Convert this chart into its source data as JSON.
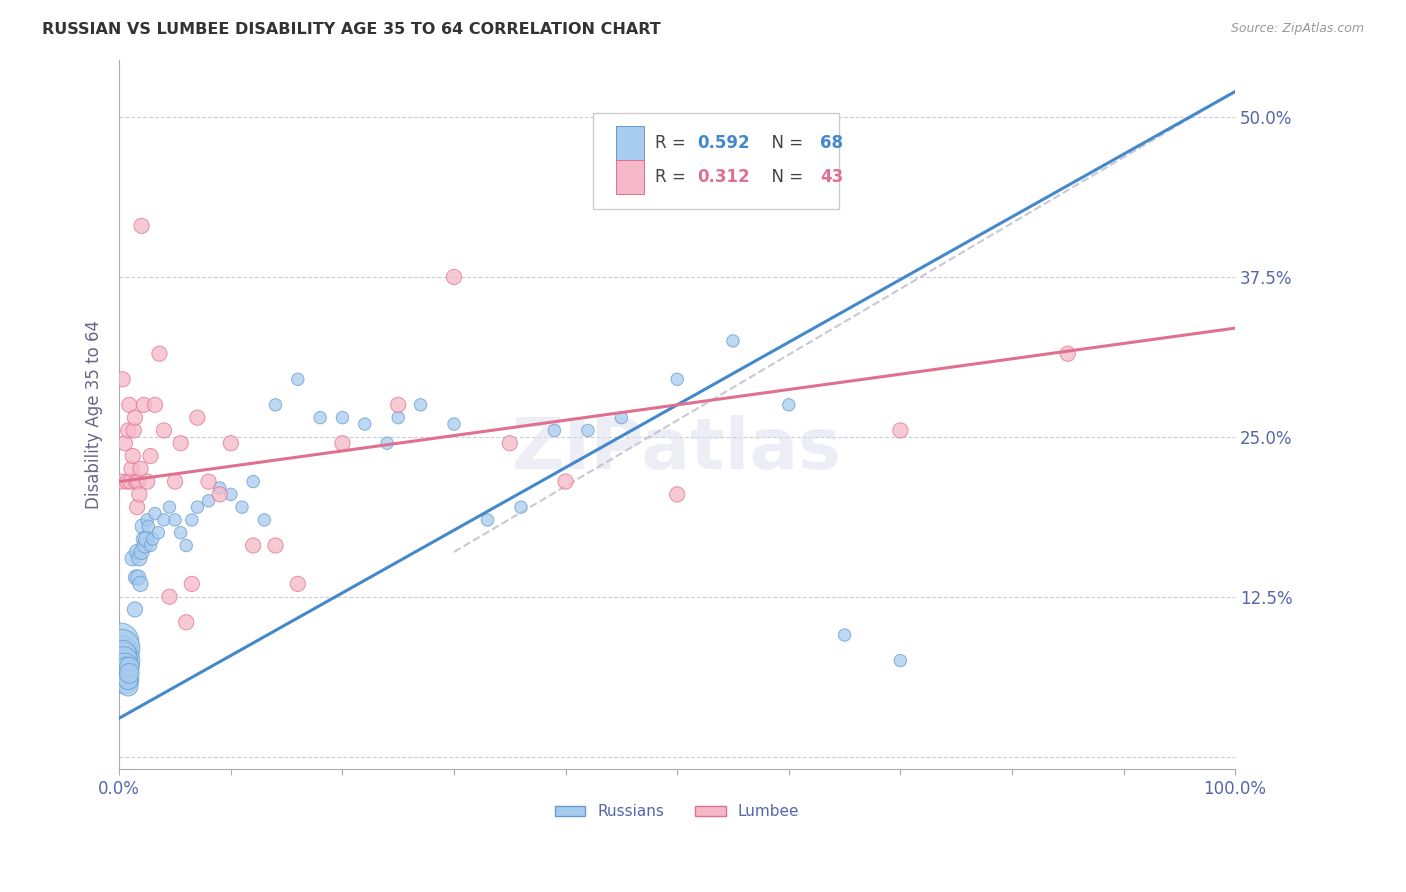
{
  "title": "RUSSIAN VS LUMBEE DISABILITY AGE 35 TO 64 CORRELATION CHART",
  "source": "Source: ZipAtlas.com",
  "ylabel": "Disability Age 35 to 64",
  "xlim": [
    0,
    1.0
  ],
  "ylim": [
    -0.01,
    0.545
  ],
  "yticks": [
    0.0,
    0.125,
    0.25,
    0.375,
    0.5
  ],
  "ytick_labels": [
    "",
    "12.5%",
    "25.0%",
    "37.5%",
    "50.0%"
  ],
  "xtick_left_label": "0.0%",
  "xtick_right_label": "100.0%",
  "russian_color": "#A8CCF0",
  "lumbee_color": "#F5B8C8",
  "russian_edge_color": "#6699CC",
  "lumbee_edge_color": "#E07090",
  "blue_line_color": "#4488CC",
  "pink_line_color": "#E07090",
  "dashed_line_color": "#BBBBCC",
  "r_russian": 0.592,
  "n_russian": 68,
  "r_lumbee": 0.312,
  "n_lumbee": 43,
  "legend_label_russian": "Russians",
  "legend_label_lumbee": "Lumbee",
  "background_color": "#FFFFFF",
  "grid_color": "#CCCCDD",
  "title_color": "#333333",
  "axis_label_color": "#666688",
  "tick_color": "#5566AA",
  "blue_line_x": [
    0.0,
    1.0
  ],
  "blue_line_y": [
    0.03,
    0.52
  ],
  "pink_line_x": [
    0.0,
    1.0
  ],
  "pink_line_y": [
    0.215,
    0.335
  ],
  "dash_line_x": [
    0.3,
    1.0
  ],
  "dash_line_y": [
    0.16,
    0.52
  ],
  "russian_points": [
    [
      0.001,
      0.09
    ],
    [
      0.001,
      0.08
    ],
    [
      0.002,
      0.085
    ],
    [
      0.002,
      0.075
    ],
    [
      0.003,
      0.07
    ],
    [
      0.003,
      0.08
    ],
    [
      0.004,
      0.065
    ],
    [
      0.004,
      0.075
    ],
    [
      0.005,
      0.06
    ],
    [
      0.005,
      0.07
    ],
    [
      0.006,
      0.065
    ],
    [
      0.006,
      0.07
    ],
    [
      0.007,
      0.06
    ],
    [
      0.007,
      0.065
    ],
    [
      0.008,
      0.055
    ],
    [
      0.008,
      0.06
    ],
    [
      0.009,
      0.07
    ],
    [
      0.009,
      0.065
    ],
    [
      0.012,
      0.155
    ],
    [
      0.014,
      0.115
    ],
    [
      0.015,
      0.14
    ],
    [
      0.016,
      0.16
    ],
    [
      0.017,
      0.14
    ],
    [
      0.018,
      0.155
    ],
    [
      0.019,
      0.135
    ],
    [
      0.02,
      0.16
    ],
    [
      0.021,
      0.18
    ],
    [
      0.022,
      0.17
    ],
    [
      0.023,
      0.165
    ],
    [
      0.024,
      0.17
    ],
    [
      0.025,
      0.185
    ],
    [
      0.026,
      0.18
    ],
    [
      0.028,
      0.165
    ],
    [
      0.03,
      0.17
    ],
    [
      0.032,
      0.19
    ],
    [
      0.035,
      0.175
    ],
    [
      0.04,
      0.185
    ],
    [
      0.045,
      0.195
    ],
    [
      0.05,
      0.185
    ],
    [
      0.055,
      0.175
    ],
    [
      0.06,
      0.165
    ],
    [
      0.065,
      0.185
    ],
    [
      0.07,
      0.195
    ],
    [
      0.08,
      0.2
    ],
    [
      0.09,
      0.21
    ],
    [
      0.1,
      0.205
    ],
    [
      0.11,
      0.195
    ],
    [
      0.12,
      0.215
    ],
    [
      0.13,
      0.185
    ],
    [
      0.14,
      0.275
    ],
    [
      0.16,
      0.295
    ],
    [
      0.18,
      0.265
    ],
    [
      0.2,
      0.265
    ],
    [
      0.22,
      0.26
    ],
    [
      0.24,
      0.245
    ],
    [
      0.25,
      0.265
    ],
    [
      0.27,
      0.275
    ],
    [
      0.3,
      0.26
    ],
    [
      0.33,
      0.185
    ],
    [
      0.36,
      0.195
    ],
    [
      0.39,
      0.255
    ],
    [
      0.42,
      0.255
    ],
    [
      0.45,
      0.265
    ],
    [
      0.5,
      0.295
    ],
    [
      0.55,
      0.325
    ],
    [
      0.6,
      0.275
    ],
    [
      0.65,
      0.095
    ],
    [
      0.7,
      0.075
    ]
  ],
  "lumbee_points": [
    [
      0.002,
      0.215
    ],
    [
      0.003,
      0.295
    ],
    [
      0.005,
      0.245
    ],
    [
      0.007,
      0.215
    ],
    [
      0.008,
      0.255
    ],
    [
      0.009,
      0.275
    ],
    [
      0.01,
      0.215
    ],
    [
      0.011,
      0.225
    ],
    [
      0.012,
      0.235
    ],
    [
      0.013,
      0.255
    ],
    [
      0.014,
      0.265
    ],
    [
      0.015,
      0.215
    ],
    [
      0.016,
      0.195
    ],
    [
      0.017,
      0.215
    ],
    [
      0.018,
      0.205
    ],
    [
      0.019,
      0.225
    ],
    [
      0.02,
      0.415
    ],
    [
      0.022,
      0.275
    ],
    [
      0.025,
      0.215
    ],
    [
      0.028,
      0.235
    ],
    [
      0.032,
      0.275
    ],
    [
      0.036,
      0.315
    ],
    [
      0.04,
      0.255
    ],
    [
      0.045,
      0.125
    ],
    [
      0.05,
      0.215
    ],
    [
      0.055,
      0.245
    ],
    [
      0.06,
      0.105
    ],
    [
      0.065,
      0.135
    ],
    [
      0.07,
      0.265
    ],
    [
      0.08,
      0.215
    ],
    [
      0.09,
      0.205
    ],
    [
      0.1,
      0.245
    ],
    [
      0.12,
      0.165
    ],
    [
      0.14,
      0.165
    ],
    [
      0.16,
      0.135
    ],
    [
      0.2,
      0.245
    ],
    [
      0.25,
      0.275
    ],
    [
      0.3,
      0.375
    ],
    [
      0.35,
      0.245
    ],
    [
      0.4,
      0.215
    ],
    [
      0.5,
      0.205
    ],
    [
      0.7,
      0.255
    ],
    [
      0.85,
      0.315
    ]
  ]
}
